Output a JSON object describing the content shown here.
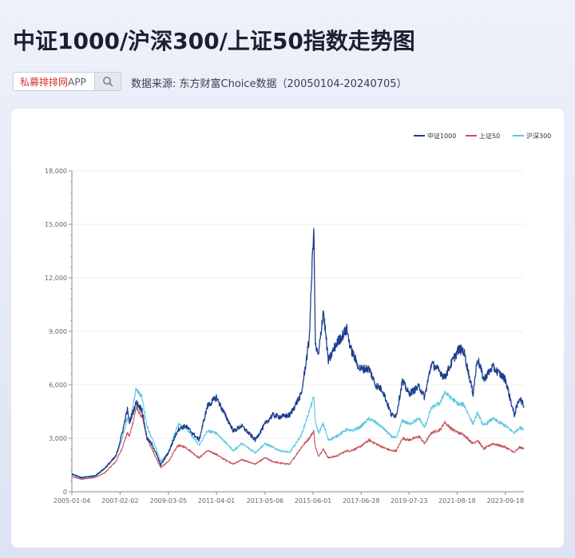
{
  "header": {
    "title": "中证1000/沪深300/上证50指数走势图",
    "search_brand": "私募排排网",
    "search_suffix": "APP",
    "source": "数据来源: 东方财富Choice数据（20050104-20240705）"
  },
  "chart_data": {
    "type": "line",
    "title": "",
    "xlabel": "",
    "ylabel": "",
    "ylim": [
      0,
      18000
    ],
    "y_ticks": [
      0,
      3000,
      6000,
      9000,
      12000,
      15000,
      18000
    ],
    "y_tick_labels": [
      "0",
      "3,000",
      "6,000",
      "9,000",
      "12,000",
      "15,000",
      "18,000"
    ],
    "x_tick_labels": [
      "2005-01-04",
      "2007-02-02",
      "2009-03-05",
      "2011-04-01",
      "2013-05-06",
      "2015-06-01",
      "2017-06-28",
      "2019-07-23",
      "2021-08-18",
      "2023-09-18"
    ],
    "grid": "horizontal",
    "legend_position": "top-right",
    "series": [
      {
        "name": "中证1000",
        "color": "#1f3f8f",
        "points": [
          [
            "2005-01-04",
            1000
          ],
          [
            "2005-06-01",
            780
          ],
          [
            "2006-01-04",
            880
          ],
          [
            "2006-06-01",
            1300
          ],
          [
            "2006-12-01",
            2000
          ],
          [
            "2007-03-01",
            3200
          ],
          [
            "2007-05-28",
            4600
          ],
          [
            "2007-07-01",
            3900
          ],
          [
            "2007-10-15",
            5000
          ],
          [
            "2008-01-14",
            4600
          ],
          [
            "2008-04-01",
            3000
          ],
          [
            "2008-07-01",
            2600
          ],
          [
            "2008-11-04",
            1500
          ],
          [
            "2009-03-05",
            2200
          ],
          [
            "2009-08-04",
            3500
          ],
          [
            "2009-12-01",
            3700
          ],
          [
            "2010-07-01",
            2900
          ],
          [
            "2010-11-10",
            4800
          ],
          [
            "2011-04-01",
            5300
          ],
          [
            "2011-06-20",
            4700
          ],
          [
            "2011-12-26",
            3400
          ],
          [
            "2012-05-01",
            3700
          ],
          [
            "2012-12-03",
            2900
          ],
          [
            "2013-05-06",
            3800
          ],
          [
            "2013-09-01",
            4300
          ],
          [
            "2014-01-01",
            4200
          ],
          [
            "2014-06-01",
            4300
          ],
          [
            "2014-12-01",
            5500
          ],
          [
            "2015-04-01",
            8500
          ],
          [
            "2015-06-12",
            15000
          ],
          [
            "2015-07-08",
            8200
          ],
          [
            "2015-08-25",
            7600
          ],
          [
            "2015-11-10",
            10200
          ],
          [
            "2016-01-28",
            7300
          ],
          [
            "2016-06-01",
            8300
          ],
          [
            "2016-11-14",
            9100
          ],
          [
            "2017-01-16",
            8000
          ],
          [
            "2017-06-01",
            6900
          ],
          [
            "2017-11-01",
            6900
          ],
          [
            "2018-02-09",
            6000
          ],
          [
            "2018-06-01",
            5700
          ],
          [
            "2018-10-18",
            4300
          ],
          [
            "2019-01-04",
            4300
          ],
          [
            "2019-04-08",
            6200
          ],
          [
            "2019-07-23",
            5500
          ],
          [
            "2019-12-31",
            5900
          ],
          [
            "2020-03-23",
            5300
          ],
          [
            "2020-07-09",
            7200
          ],
          [
            "2020-12-01",
            6700
          ],
          [
            "2021-02-01",
            6400
          ],
          [
            "2021-06-01",
            7300
          ],
          [
            "2021-09-13",
            8000
          ],
          [
            "2021-12-01",
            7900
          ],
          [
            "2022-04-26",
            5500
          ],
          [
            "2022-07-05",
            7500
          ],
          [
            "2022-10-12",
            6300
          ],
          [
            "2023-03-01",
            7000
          ],
          [
            "2023-09-18",
            6300
          ],
          [
            "2024-02-05",
            4300
          ],
          [
            "2024-05-01",
            5300
          ],
          [
            "2024-07-05",
            4800
          ]
        ]
      },
      {
        "name": "上证50",
        "color": "#c8525a",
        "points": [
          [
            "2005-01-04",
            850
          ],
          [
            "2005-06-01",
            700
          ],
          [
            "2006-01-04",
            800
          ],
          [
            "2006-06-01",
            1050
          ],
          [
            "2006-12-01",
            1700
          ],
          [
            "2007-03-01",
            2400
          ],
          [
            "2007-05-28",
            3300
          ],
          [
            "2007-07-01",
            3100
          ],
          [
            "2007-10-15",
            4700
          ],
          [
            "2008-01-14",
            4200
          ],
          [
            "2008-04-01",
            3000
          ],
          [
            "2008-07-01",
            2300
          ],
          [
            "2008-11-04",
            1350
          ],
          [
            "2009-03-05",
            1700
          ],
          [
            "2009-08-04",
            2600
          ],
          [
            "2009-12-01",
            2500
          ],
          [
            "2010-07-01",
            1900
          ],
          [
            "2010-11-10",
            2300
          ],
          [
            "2011-04-01",
            2100
          ],
          [
            "2011-06-20",
            1900
          ],
          [
            "2011-12-26",
            1550
          ],
          [
            "2012-05-01",
            1800
          ],
          [
            "2012-12-03",
            1550
          ],
          [
            "2013-05-06",
            1900
          ],
          [
            "2013-09-01",
            1700
          ],
          [
            "2014-01-01",
            1600
          ],
          [
            "2014-06-01",
            1550
          ],
          [
            "2014-12-01",
            2500
          ],
          [
            "2015-04-01",
            3000
          ],
          [
            "2015-06-12",
            3400
          ],
          [
            "2015-07-08",
            2500
          ],
          [
            "2015-08-25",
            2000
          ],
          [
            "2015-11-10",
            2400
          ],
          [
            "2016-01-28",
            1900
          ],
          [
            "2016-06-01",
            2000
          ],
          [
            "2016-11-14",
            2300
          ],
          [
            "2017-01-16",
            2300
          ],
          [
            "2017-06-01",
            2500
          ],
          [
            "2017-11-01",
            2900
          ],
          [
            "2018-02-09",
            2700
          ],
          [
            "2018-06-01",
            2500
          ],
          [
            "2018-10-18",
            2300
          ],
          [
            "2019-01-04",
            2300
          ],
          [
            "2019-04-08",
            3000
          ],
          [
            "2019-07-23",
            2900
          ],
          [
            "2019-12-31",
            3100
          ],
          [
            "2020-03-23",
            2700
          ],
          [
            "2020-07-09",
            3300
          ],
          [
            "2020-12-01",
            3500
          ],
          [
            "2021-02-01",
            3900
          ],
          [
            "2021-06-01",
            3500
          ],
          [
            "2021-09-13",
            3300
          ],
          [
            "2021-12-01",
            3200
          ],
          [
            "2022-04-26",
            2700
          ],
          [
            "2022-07-05",
            2900
          ],
          [
            "2022-10-12",
            2400
          ],
          [
            "2023-03-01",
            2700
          ],
          [
            "2023-09-18",
            2500
          ],
          [
            "2024-02-05",
            2200
          ],
          [
            "2024-05-01",
            2500
          ],
          [
            "2024-07-05",
            2400
          ]
        ]
      },
      {
        "name": "沪深300",
        "color": "#5cc8e0",
        "points": [
          [
            "2005-01-04",
            1000
          ],
          [
            "2005-06-01",
            820
          ],
          [
            "2006-01-04",
            920
          ],
          [
            "2006-06-01",
            1300
          ],
          [
            "2006-12-01",
            2000
          ],
          [
            "2007-03-01",
            2900
          ],
          [
            "2007-05-28",
            4100
          ],
          [
            "2007-07-01",
            3800
          ],
          [
            "2007-10-15",
            5800
          ],
          [
            "2008-01-14",
            5300
          ],
          [
            "2008-04-01",
            3700
          ],
          [
            "2008-07-01",
            2900
          ],
          [
            "2008-11-04",
            1700
          ],
          [
            "2009-03-05",
            2200
          ],
          [
            "2009-08-04",
            3800
          ],
          [
            "2009-12-01",
            3600
          ],
          [
            "2010-07-01",
            2600
          ],
          [
            "2010-11-10",
            3400
          ],
          [
            "2011-04-01",
            3300
          ],
          [
            "2011-06-20",
            3000
          ],
          [
            "2011-12-26",
            2300
          ],
          [
            "2012-05-01",
            2700
          ],
          [
            "2012-12-03",
            2200
          ],
          [
            "2013-05-06",
            2700
          ],
          [
            "2013-09-01",
            2500
          ],
          [
            "2014-01-01",
            2300
          ],
          [
            "2014-06-01",
            2200
          ],
          [
            "2014-12-01",
            3200
          ],
          [
            "2015-04-01",
            4500
          ],
          [
            "2015-06-12",
            5300
          ],
          [
            "2015-07-08",
            3900
          ],
          [
            "2015-08-25",
            3300
          ],
          [
            "2015-11-10",
            3800
          ],
          [
            "2016-01-28",
            2900
          ],
          [
            "2016-06-01",
            3100
          ],
          [
            "2016-11-14",
            3500
          ],
          [
            "2017-01-16",
            3400
          ],
          [
            "2017-06-01",
            3600
          ],
          [
            "2017-11-01",
            4100
          ],
          [
            "2018-02-09",
            3900
          ],
          [
            "2018-06-01",
            3600
          ],
          [
            "2018-10-18",
            3100
          ],
          [
            "2019-01-04",
            3000
          ],
          [
            "2019-04-08",
            4000
          ],
          [
            "2019-07-23",
            3800
          ],
          [
            "2019-12-31",
            4100
          ],
          [
            "2020-03-23",
            3600
          ],
          [
            "2020-07-09",
            4700
          ],
          [
            "2020-12-01",
            5000
          ],
          [
            "2021-02-01",
            5600
          ],
          [
            "2021-06-01",
            5200
          ],
          [
            "2021-09-13",
            4900
          ],
          [
            "2021-12-01",
            4900
          ],
          [
            "2022-04-26",
            3800
          ],
          [
            "2022-07-05",
            4400
          ],
          [
            "2022-10-12",
            3700
          ],
          [
            "2023-03-01",
            4100
          ],
          [
            "2023-09-18",
            3700
          ],
          [
            "2024-02-05",
            3300
          ],
          [
            "2024-05-01",
            3600
          ],
          [
            "2024-07-05",
            3500
          ]
        ]
      }
    ]
  }
}
